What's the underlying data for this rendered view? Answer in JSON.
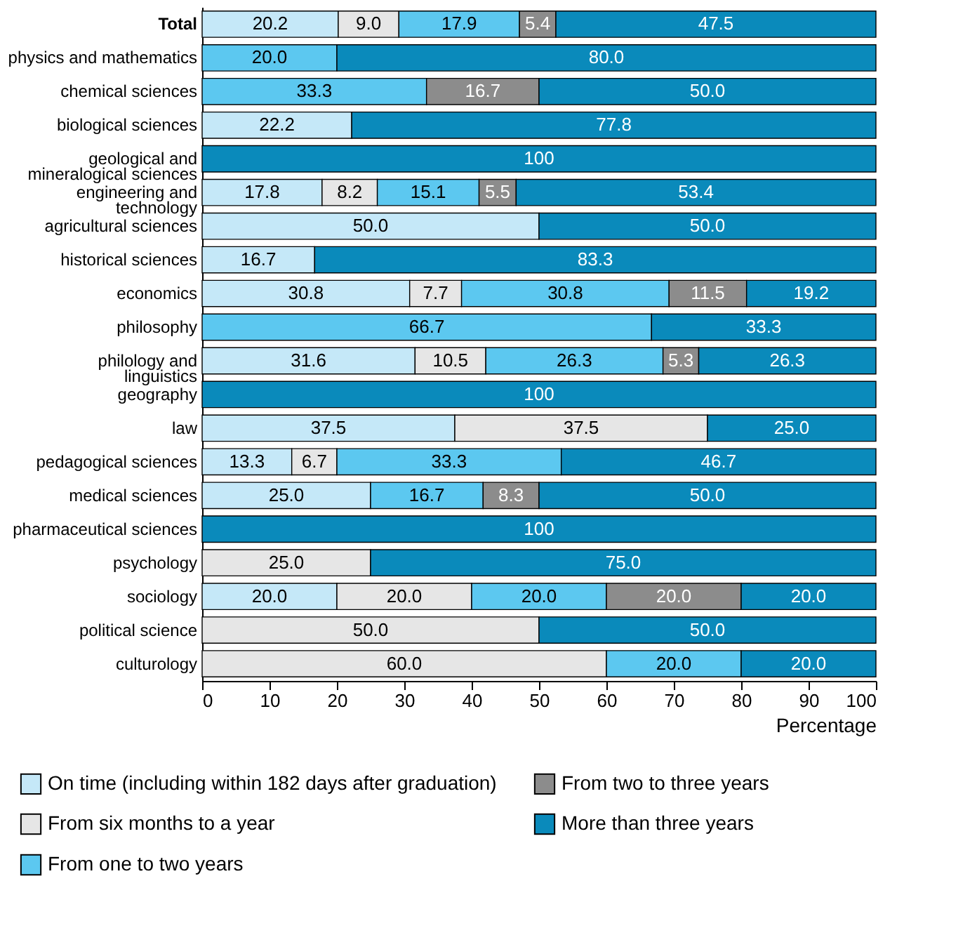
{
  "chart_data": {
    "type": "bar",
    "orientation": "horizontal",
    "stacked": true,
    "xlabel": "Percentage",
    "categories": [
      "Total",
      "physics and mathematics",
      "chemical sciences",
      "biological sciences",
      "geological and mineralogical sciences",
      "engineering and technology",
      "agricultural sciences",
      "historical sciences",
      "economics",
      "philosophy",
      "philology and linguistics",
      "geography",
      "law",
      "pedagogical sciences",
      "medical sciences",
      "pharmaceutical sciences",
      "psychology",
      "sociology",
      "political science",
      "culturology"
    ],
    "xlim": [
      0,
      100
    ],
    "xticks": [
      0,
      10,
      20,
      30,
      40,
      50,
      60,
      70,
      80,
      90,
      100
    ],
    "grid": false,
    "legend": "bottom",
    "series": [
      {
        "name": "On time (including within 182 days after graduation)",
        "color": "#c5e8f8",
        "values": [
          20.2,
          null,
          null,
          22.2,
          null,
          17.8,
          50.0,
          16.7,
          30.8,
          null,
          31.6,
          null,
          37.5,
          13.3,
          25.0,
          null,
          null,
          20.0,
          null,
          null
        ],
        "value_labels": [
          "20.2",
          null,
          null,
          "22.2",
          null,
          "17.8",
          "50.0",
          "16.7",
          "30.8",
          null,
          "31.6",
          null,
          "37.5",
          "13.3",
          "25.0",
          null,
          null,
          "20.0",
          null,
          null
        ]
      },
      {
        "name": "From six months to a year",
        "color": "#e6e6e6",
        "values": [
          9.0,
          null,
          null,
          null,
          null,
          8.2,
          null,
          null,
          7.7,
          null,
          10.5,
          null,
          37.5,
          6.7,
          null,
          null,
          25.0,
          20.0,
          50.0,
          60.0
        ],
        "value_labels": [
          "9.0",
          null,
          null,
          null,
          null,
          "8.2",
          null,
          null,
          "7.7",
          null,
          "10.5",
          null,
          "37.5",
          "6.7",
          null,
          null,
          "25.0",
          "20.0",
          "50.0",
          "60.0"
        ]
      },
      {
        "name": "From one to two years",
        "color": "#5cc8f0",
        "values": [
          17.9,
          20.0,
          33.3,
          null,
          null,
          15.1,
          null,
          null,
          30.8,
          66.7,
          26.3,
          null,
          null,
          33.3,
          16.7,
          null,
          null,
          20.0,
          null,
          20.0
        ],
        "value_labels": [
          "17.9",
          "20.0",
          "33.3",
          null,
          null,
          "15.1",
          null,
          null,
          "30.8",
          "66.7",
          "26.3",
          null,
          null,
          "33.3",
          "16.7",
          null,
          null,
          "20.0",
          null,
          "20.0"
        ]
      },
      {
        "name": "From two to three years",
        "color": "#8c8c8c",
        "values": [
          5.4,
          null,
          16.7,
          null,
          null,
          5.5,
          null,
          null,
          11.5,
          null,
          5.3,
          null,
          null,
          null,
          8.3,
          null,
          null,
          20.0,
          null,
          null
        ],
        "value_labels": [
          "5.4",
          null,
          "16.7",
          null,
          null,
          "5.5",
          null,
          null,
          "11.5",
          null,
          "5.3",
          null,
          null,
          null,
          "8.3",
          null,
          null,
          "20.0",
          null,
          null
        ]
      },
      {
        "name": "More than three years",
        "color": "#0a8abb",
        "values": [
          47.5,
          80.0,
          50.0,
          77.8,
          100,
          53.4,
          50.0,
          83.3,
          19.2,
          33.3,
          26.3,
          100,
          25.0,
          46.7,
          50.0,
          100,
          75.0,
          20.0,
          50.0,
          20.0
        ],
        "value_labels": [
          "47.5",
          "80.0",
          "50.0",
          "77.8",
          "100",
          "53.4",
          "50.0",
          "83.3",
          "19.2",
          "33.3",
          "26.3",
          "100",
          "25.0",
          "46.7",
          "50.0",
          "100",
          "75.0",
          "20.0",
          "50.0",
          "20.0"
        ]
      }
    ]
  }
}
